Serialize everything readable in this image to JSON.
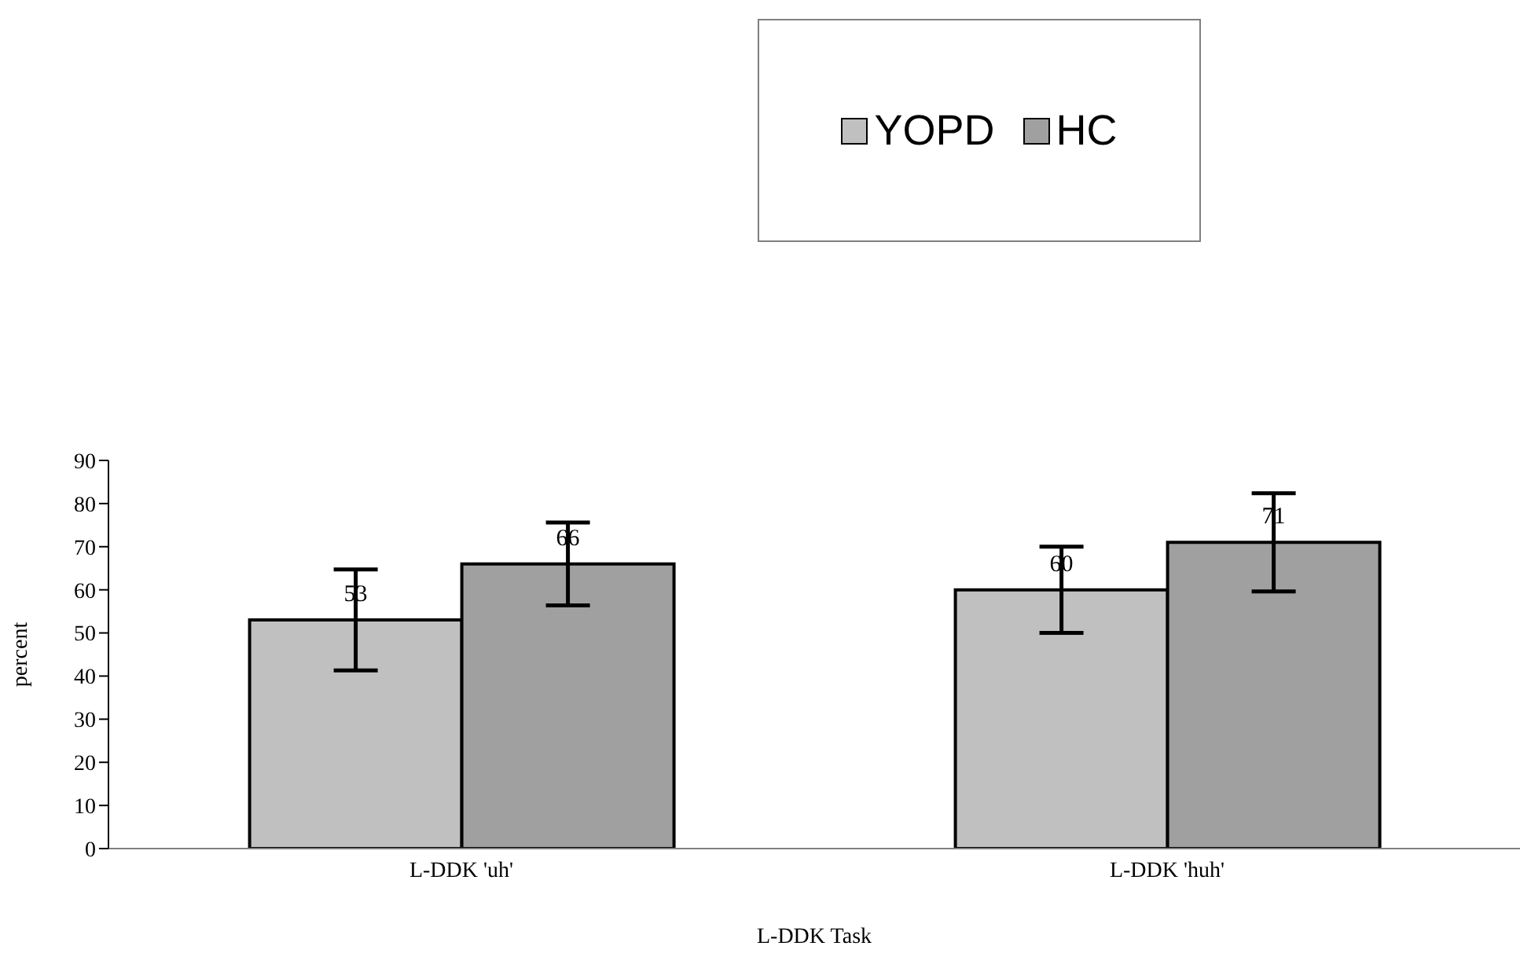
{
  "chart_data": {
    "type": "bar",
    "xlabel": "L-DDK Task",
    "ylabel": "percent",
    "categories": [
      "L-DDK 'uh'",
      "L-DDK 'huh'"
    ],
    "series": [
      {
        "name": "YOPD",
        "color": "#c0c0c0",
        "values": [
          53,
          60
        ],
        "errors": [
          11.7,
          10
        ]
      },
      {
        "name": "HC",
        "color": "#a0a0a0",
        "values": [
          66,
          71
        ],
        "errors": [
          9.6,
          11.4
        ]
      }
    ],
    "ylim": [
      0,
      90
    ],
    "yticks": [
      0,
      10,
      20,
      30,
      40,
      50,
      60,
      70,
      80,
      90
    ],
    "data_labels": true,
    "legend": "top",
    "grid": false
  }
}
